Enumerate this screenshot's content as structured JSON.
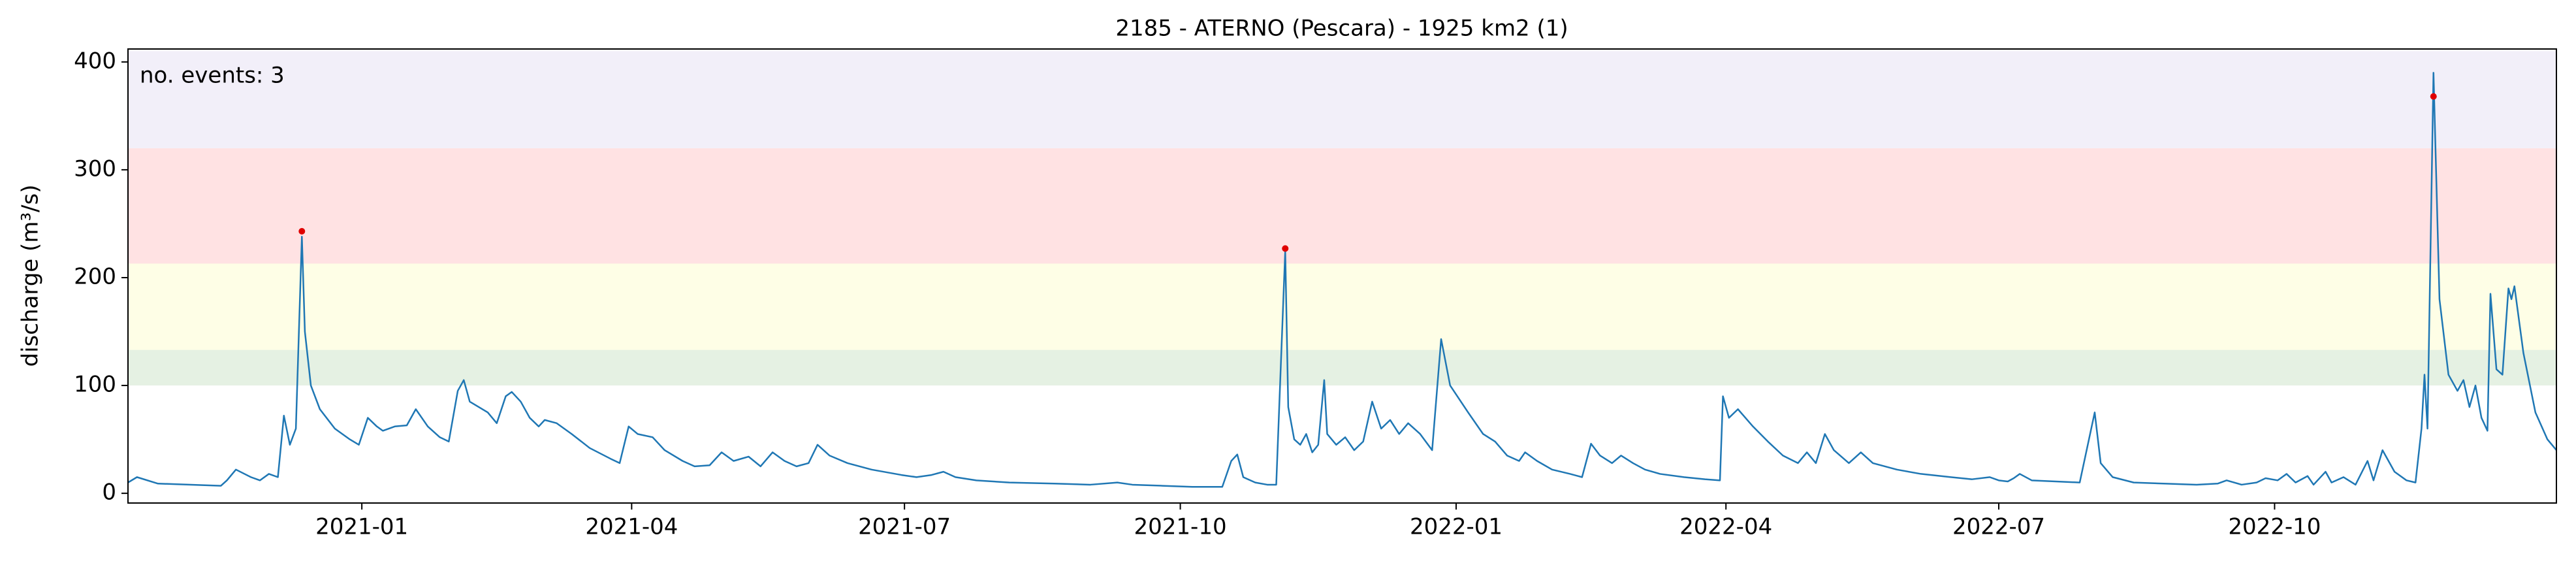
{
  "chart_data": {
    "type": "line",
    "title": "2185 - ATERNO (Pescara) - 1925 km2 (1)",
    "y_label": "discharge (m³/s)",
    "annotation": "no. events: 3",
    "annotation_color": "#e00000",
    "xlim": [
      "2020-10-15",
      "2023-01-03"
    ],
    "xticks": [
      {
        "value": "2021-01-01",
        "label": "2021-01"
      },
      {
        "value": "2021-04-01",
        "label": "2021-04"
      },
      {
        "value": "2021-07-01",
        "label": "2021-07"
      },
      {
        "value": "2021-10-01",
        "label": "2021-10"
      },
      {
        "value": "2022-01-01",
        "label": "2022-01"
      },
      {
        "value": "2022-04-01",
        "label": "2022-04"
      },
      {
        "value": "2022-07-01",
        "label": "2022-07"
      },
      {
        "value": "2022-10-01",
        "label": "2022-10"
      }
    ],
    "ylim": [
      -9,
      412
    ],
    "yticks": [
      0,
      100,
      200,
      300,
      400
    ],
    "bands": [
      {
        "range": [
          100,
          133
        ],
        "color": "#e5f1e3"
      },
      {
        "range": [
          133,
          213
        ],
        "color": "#fefee6"
      },
      {
        "range": [
          213,
          320
        ],
        "color": "#ffe2e3"
      },
      {
        "range": [
          320,
          410
        ],
        "color": "#f2eff9"
      }
    ],
    "series": [
      {
        "color": "#1f77b4",
        "x": [
          "2020-10-15",
          "2020-10-18",
          "2020-10-25",
          "2020-11-05",
          "2020-11-15",
          "2020-11-17",
          "2020-11-20",
          "2020-11-25",
          "2020-11-28",
          "2020-12-01",
          "2020-12-04",
          "2020-12-06",
          "2020-12-08",
          "2020-12-10",
          "2020-12-12",
          "2020-12-13",
          "2020-12-15",
          "2020-12-18",
          "2020-12-23",
          "2020-12-28",
          "2020-12-31",
          "2021-01-03",
          "2021-01-06",
          "2021-01-08",
          "2021-01-12",
          "2021-01-16",
          "2021-01-19",
          "2021-01-23",
          "2021-01-27",
          "2021-01-30",
          "2021-02-02",
          "2021-02-04",
          "2021-02-06",
          "2021-02-09",
          "2021-02-12",
          "2021-02-15",
          "2021-02-18",
          "2021-02-20",
          "2021-02-23",
          "2021-02-26",
          "2021-03-01",
          "2021-03-03",
          "2021-03-07",
          "2021-03-12",
          "2021-03-18",
          "2021-03-25",
          "2021-03-28",
          "2021-03-31",
          "2021-04-03",
          "2021-04-08",
          "2021-04-12",
          "2021-04-18",
          "2021-04-22",
          "2021-04-27",
          "2021-05-01",
          "2021-05-05",
          "2021-05-10",
          "2021-05-14",
          "2021-05-18",
          "2021-05-22",
          "2021-05-26",
          "2021-05-30",
          "2021-06-02",
          "2021-06-06",
          "2021-06-12",
          "2021-06-20",
          "2021-06-30",
          "2021-07-05",
          "2021-07-10",
          "2021-07-14",
          "2021-07-18",
          "2021-07-25",
          "2021-08-05",
          "2021-08-20",
          "2021-09-01",
          "2021-09-10",
          "2021-09-15",
          "2021-09-25",
          "2021-10-05",
          "2021-10-15",
          "2021-10-18",
          "2021-10-20",
          "2021-10-22",
          "2021-10-26",
          "2021-10-30",
          "2021-11-02",
          "2021-11-05",
          "2021-11-06",
          "2021-11-08",
          "2021-11-10",
          "2021-11-12",
          "2021-11-14",
          "2021-11-16",
          "2021-11-18",
          "2021-11-19",
          "2021-11-22",
          "2021-11-25",
          "2021-11-28",
          "2021-12-01",
          "2021-12-04",
          "2021-12-07",
          "2021-12-10",
          "2021-12-13",
          "2021-12-16",
          "2021-12-20",
          "2021-12-24",
          "2021-12-27",
          "2021-12-30",
          "2022-01-05",
          "2022-01-10",
          "2022-01-14",
          "2022-01-18",
          "2022-01-22",
          "2022-01-24",
          "2022-01-28",
          "2022-02-02",
          "2022-02-08",
          "2022-02-12",
          "2022-02-15",
          "2022-02-18",
          "2022-02-22",
          "2022-02-25",
          "2022-03-01",
          "2022-03-05",
          "2022-03-10",
          "2022-03-18",
          "2022-03-25",
          "2022-03-30",
          "2022-03-31",
          "2022-04-02",
          "2022-04-05",
          "2022-04-10",
          "2022-04-15",
          "2022-04-20",
          "2022-04-25",
          "2022-04-28",
          "2022-05-01",
          "2022-05-04",
          "2022-05-07",
          "2022-05-12",
          "2022-05-16",
          "2022-05-20",
          "2022-05-28",
          "2022-06-05",
          "2022-06-15",
          "2022-06-22",
          "2022-06-28",
          "2022-07-01",
          "2022-07-04",
          "2022-07-06",
          "2022-07-08",
          "2022-07-12",
          "2022-07-20",
          "2022-07-28",
          "2022-08-02",
          "2022-08-04",
          "2022-08-08",
          "2022-08-15",
          "2022-08-25",
          "2022-09-05",
          "2022-09-12",
          "2022-09-15",
          "2022-09-20",
          "2022-09-25",
          "2022-09-28",
          "2022-10-02",
          "2022-10-05",
          "2022-10-08",
          "2022-10-12",
          "2022-10-14",
          "2022-10-18",
          "2022-10-20",
          "2022-10-24",
          "2022-10-28",
          "2022-11-01",
          "2022-11-03",
          "2022-11-06",
          "2022-11-10",
          "2022-11-14",
          "2022-11-17",
          "2022-11-19",
          "2022-11-20",
          "2022-11-21",
          "2022-11-23",
          "2022-11-25",
          "2022-11-28",
          "2022-12-01",
          "2022-12-03",
          "2022-12-05",
          "2022-12-07",
          "2022-12-09",
          "2022-12-11",
          "2022-12-12",
          "2022-12-14",
          "2022-12-16",
          "2022-12-18",
          "2022-12-19",
          "2022-12-20",
          "2022-12-23",
          "2022-12-27",
          "2022-12-31",
          "2023-01-03"
        ],
        "values": [
          10,
          15,
          9,
          8,
          7,
          12,
          22,
          15,
          12,
          18,
          15,
          72,
          45,
          60,
          238,
          150,
          100,
          78,
          60,
          50,
          45,
          70,
          62,
          58,
          62,
          63,
          78,
          62,
          52,
          48,
          95,
          105,
          85,
          80,
          75,
          65,
          90,
          94,
          85,
          70,
          62,
          68,
          65,
          55,
          42,
          32,
          28,
          62,
          55,
          52,
          40,
          30,
          25,
          26,
          38,
          30,
          34,
          25,
          38,
          30,
          25,
          28,
          45,
          35,
          28,
          22,
          17,
          15,
          17,
          20,
          15,
          12,
          10,
          9,
          8,
          10,
          8,
          7,
          6,
          6,
          30,
          36,
          15,
          10,
          8,
          8,
          225,
          80,
          50,
          45,
          55,
          38,
          45,
          105,
          55,
          45,
          52,
          40,
          48,
          85,
          60,
          68,
          55,
          65,
          55,
          40,
          143,
          100,
          75,
          55,
          48,
          35,
          30,
          38,
          30,
          22,
          18,
          15,
          46,
          35,
          28,
          35,
          28,
          22,
          18,
          15,
          13,
          12,
          90,
          70,
          78,
          62,
          48,
          35,
          28,
          38,
          28,
          55,
          40,
          28,
          38,
          28,
          22,
          18,
          15,
          13,
          15,
          12,
          11,
          14,
          18,
          12,
          11,
          10,
          75,
          28,
          15,
          10,
          9,
          8,
          9,
          12,
          8,
          10,
          14,
          12,
          18,
          10,
          16,
          8,
          20,
          10,
          15,
          8,
          30,
          12,
          40,
          20,
          12,
          10,
          60,
          110,
          60,
          390,
          180,
          110,
          95,
          105,
          80,
          100,
          70,
          58,
          185,
          115,
          110,
          190,
          180,
          192,
          130,
          75,
          50,
          40
        ]
      },
      {
        "type": "scatter",
        "color": "#e00000",
        "x": [
          "2020-12-12",
          "2021-11-05",
          "2022-11-23"
        ],
        "values": [
          243,
          227,
          368
        ]
      }
    ]
  }
}
